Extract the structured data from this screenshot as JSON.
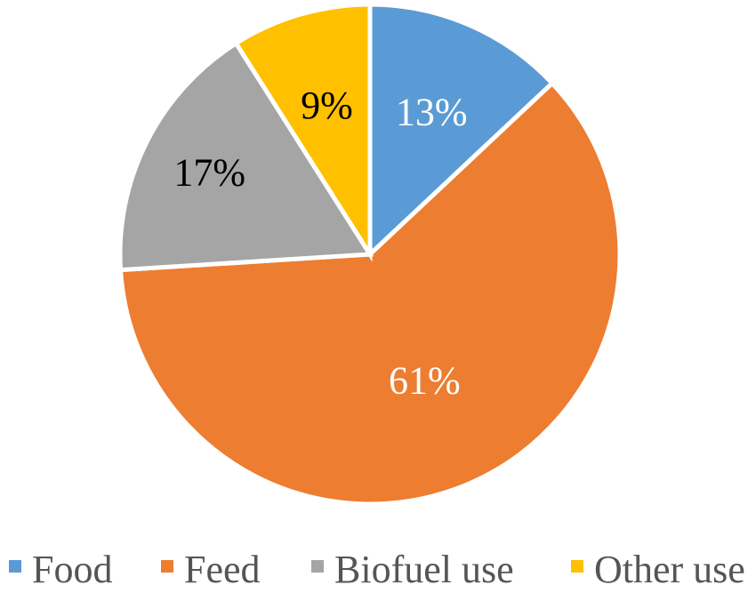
{
  "chart_data": {
    "type": "pie",
    "title": "",
    "categories": [
      "Food",
      "Feed",
      "Biofuel use",
      "Other use"
    ],
    "values": [
      13,
      61,
      17,
      9
    ],
    "labels": [
      "13%",
      "61%",
      "17%",
      "9%"
    ],
    "colors": [
      "#5b9bd5",
      "#ed7d31",
      "#a5a5a5",
      "#ffc000"
    ],
    "label_colors": [
      "#ffffff",
      "#ffffff",
      "#000000",
      "#000000"
    ],
    "start_angle": "12 o'clock",
    "direction": "clockwise",
    "legend": {
      "position": "bottom",
      "entries": [
        "Food",
        "Feed",
        "Biofuel use",
        "Other use"
      ]
    }
  }
}
